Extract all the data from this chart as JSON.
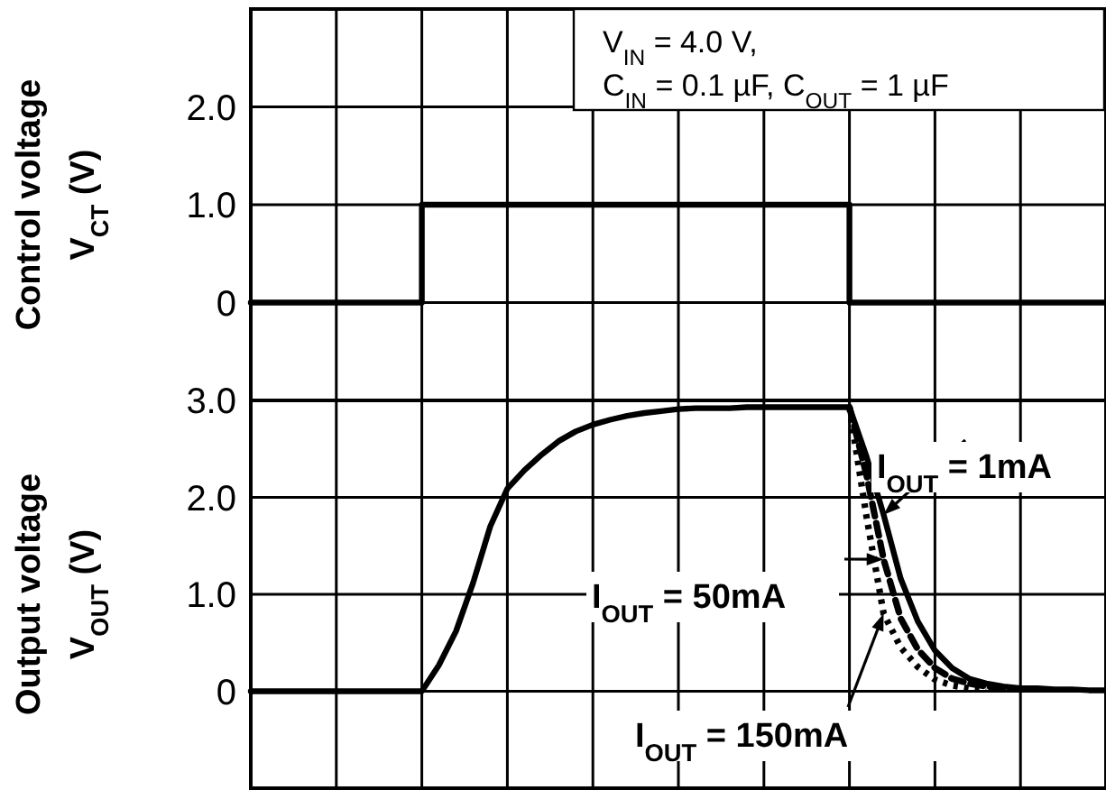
{
  "chart_data": [
    {
      "type": "step",
      "ylabel": "Control voltage\nV$_{CT}$   (V)",
      "categories": [
        null,
        null,
        null,
        null,
        null,
        null,
        null,
        null,
        null,
        null,
        null,
        null,
        null,
        null,
        null,
        null,
        null,
        null,
        null,
        null,
        null,
        null,
        null,
        null,
        null,
        null,
        null,
        null,
        null,
        null,
        null,
        null,
        null,
        null,
        null,
        null,
        null,
        null,
        null,
        null,
        null,
        null,
        null,
        null,
        null,
        null,
        null,
        null,
        null,
        null,
        null
      ],
      "ylim": [
        -1,
        3
      ],
      "yticks": [
        {
          "value": -1,
          "label": null
        },
        {
          "value": 0,
          "label": "0"
        },
        {
          "value": 1,
          "label": "1.0"
        },
        {
          "value": 2,
          "label": "2.0"
        },
        {
          "value": 3,
          "label": null
        }
      ],
      "grid": true,
      "legend": false,
      "annotations": [
        "V$_{IN}$ = 4.0 V,",
        "C$_{IN}$ = 0.1 µF, C$_{OUT}$ = 1 µF"
      ],
      "series": [
        {
          "color": "#000000",
          "line_style": "solid",
          "values": [
            0,
            0,
            0,
            0,
            0,
            0,
            0,
            0,
            0,
            0,
            1,
            1,
            1,
            1,
            1,
            1,
            1,
            1,
            1,
            1,
            1,
            1,
            1,
            1,
            1,
            1,
            1,
            1,
            1,
            1,
            1,
            1,
            1,
            1,
            1,
            0,
            0,
            0,
            0,
            0,
            0,
            0,
            0,
            0,
            0,
            0,
            0,
            0,
            0,
            0,
            0
          ]
        }
      ]
    },
    {
      "type": "line",
      "ylabel": "Output voltage\nV$_{OUT}$   (V)",
      "categories": [
        null,
        null,
        null,
        null,
        null,
        null,
        null,
        null,
        null,
        null,
        null,
        null,
        null,
        null,
        null,
        null,
        null,
        null,
        null,
        null,
        null,
        null,
        null,
        null,
        null,
        null,
        null,
        null,
        null,
        null,
        null,
        null,
        null,
        null,
        null,
        null,
        null,
        null,
        null,
        null,
        null,
        null,
        null,
        null,
        null,
        null,
        null,
        null,
        null,
        null,
        null
      ],
      "ylim": [
        -1,
        3
      ],
      "yticks": [
        {
          "value": -1,
          "label": null
        },
        {
          "value": 0,
          "label": "0"
        },
        {
          "value": 1,
          "label": "1.0"
        },
        {
          "value": 2,
          "label": "2.0"
        },
        {
          "value": 3,
          "label": "3.0"
        }
      ],
      "grid": true,
      "legend": false,
      "series": [
        {
          "name": "I$_{OUT}$ = 1mA",
          "color": "#000000",
          "line_style": "solid",
          "values": [
            0,
            0,
            0,
            0,
            0,
            0,
            0,
            0,
            0,
            0,
            0,
            0.27,
            0.62,
            1.12,
            1.7,
            2.09,
            2.28,
            2.44,
            2.58,
            2.68,
            2.75,
            2.8,
            2.84,
            2.87,
            2.89,
            2.91,
            2.92,
            2.92,
            2.92,
            2.93,
            2.93,
            2.93,
            2.93,
            2.93,
            2.93,
            2.93,
            2.42,
            1.82,
            1.16,
            0.72,
            0.42,
            0.24,
            0.13,
            0.08,
            0.05,
            0.03,
            0.03,
            0.02,
            0.02,
            0.01,
            0.01
          ]
        },
        {
          "name": "I$_{OUT}$ = 50mA",
          "color": "#000000",
          "line_style": "dashed",
          "values": [
            null,
            null,
            null,
            null,
            null,
            null,
            null,
            null,
            null,
            null,
            null,
            null,
            null,
            null,
            null,
            null,
            null,
            null,
            null,
            null,
            null,
            null,
            null,
            null,
            null,
            null,
            null,
            null,
            null,
            null,
            null,
            null,
            null,
            null,
            null,
            2.93,
            2.23,
            1.36,
            0.75,
            0.43,
            0.24,
            0.13,
            0.08,
            0.05,
            0.03,
            0.02,
            null,
            null,
            null,
            null,
            null
          ]
        },
        {
          "name": "I$_{OUT}$ = 150mA",
          "color": "#000000",
          "line_style": "dotted",
          "values": [
            null,
            null,
            null,
            null,
            null,
            null,
            null,
            null,
            null,
            null,
            null,
            null,
            null,
            null,
            null,
            null,
            null,
            null,
            null,
            null,
            null,
            null,
            null,
            null,
            null,
            null,
            null,
            null,
            null,
            null,
            null,
            null,
            null,
            null,
            null,
            2.93,
            1.8,
            0.8,
            0.45,
            0.25,
            0.12,
            0.06,
            0.03,
            0.02,
            null,
            null,
            null,
            null,
            null,
            null,
            null
          ]
        }
      ]
    }
  ]
}
